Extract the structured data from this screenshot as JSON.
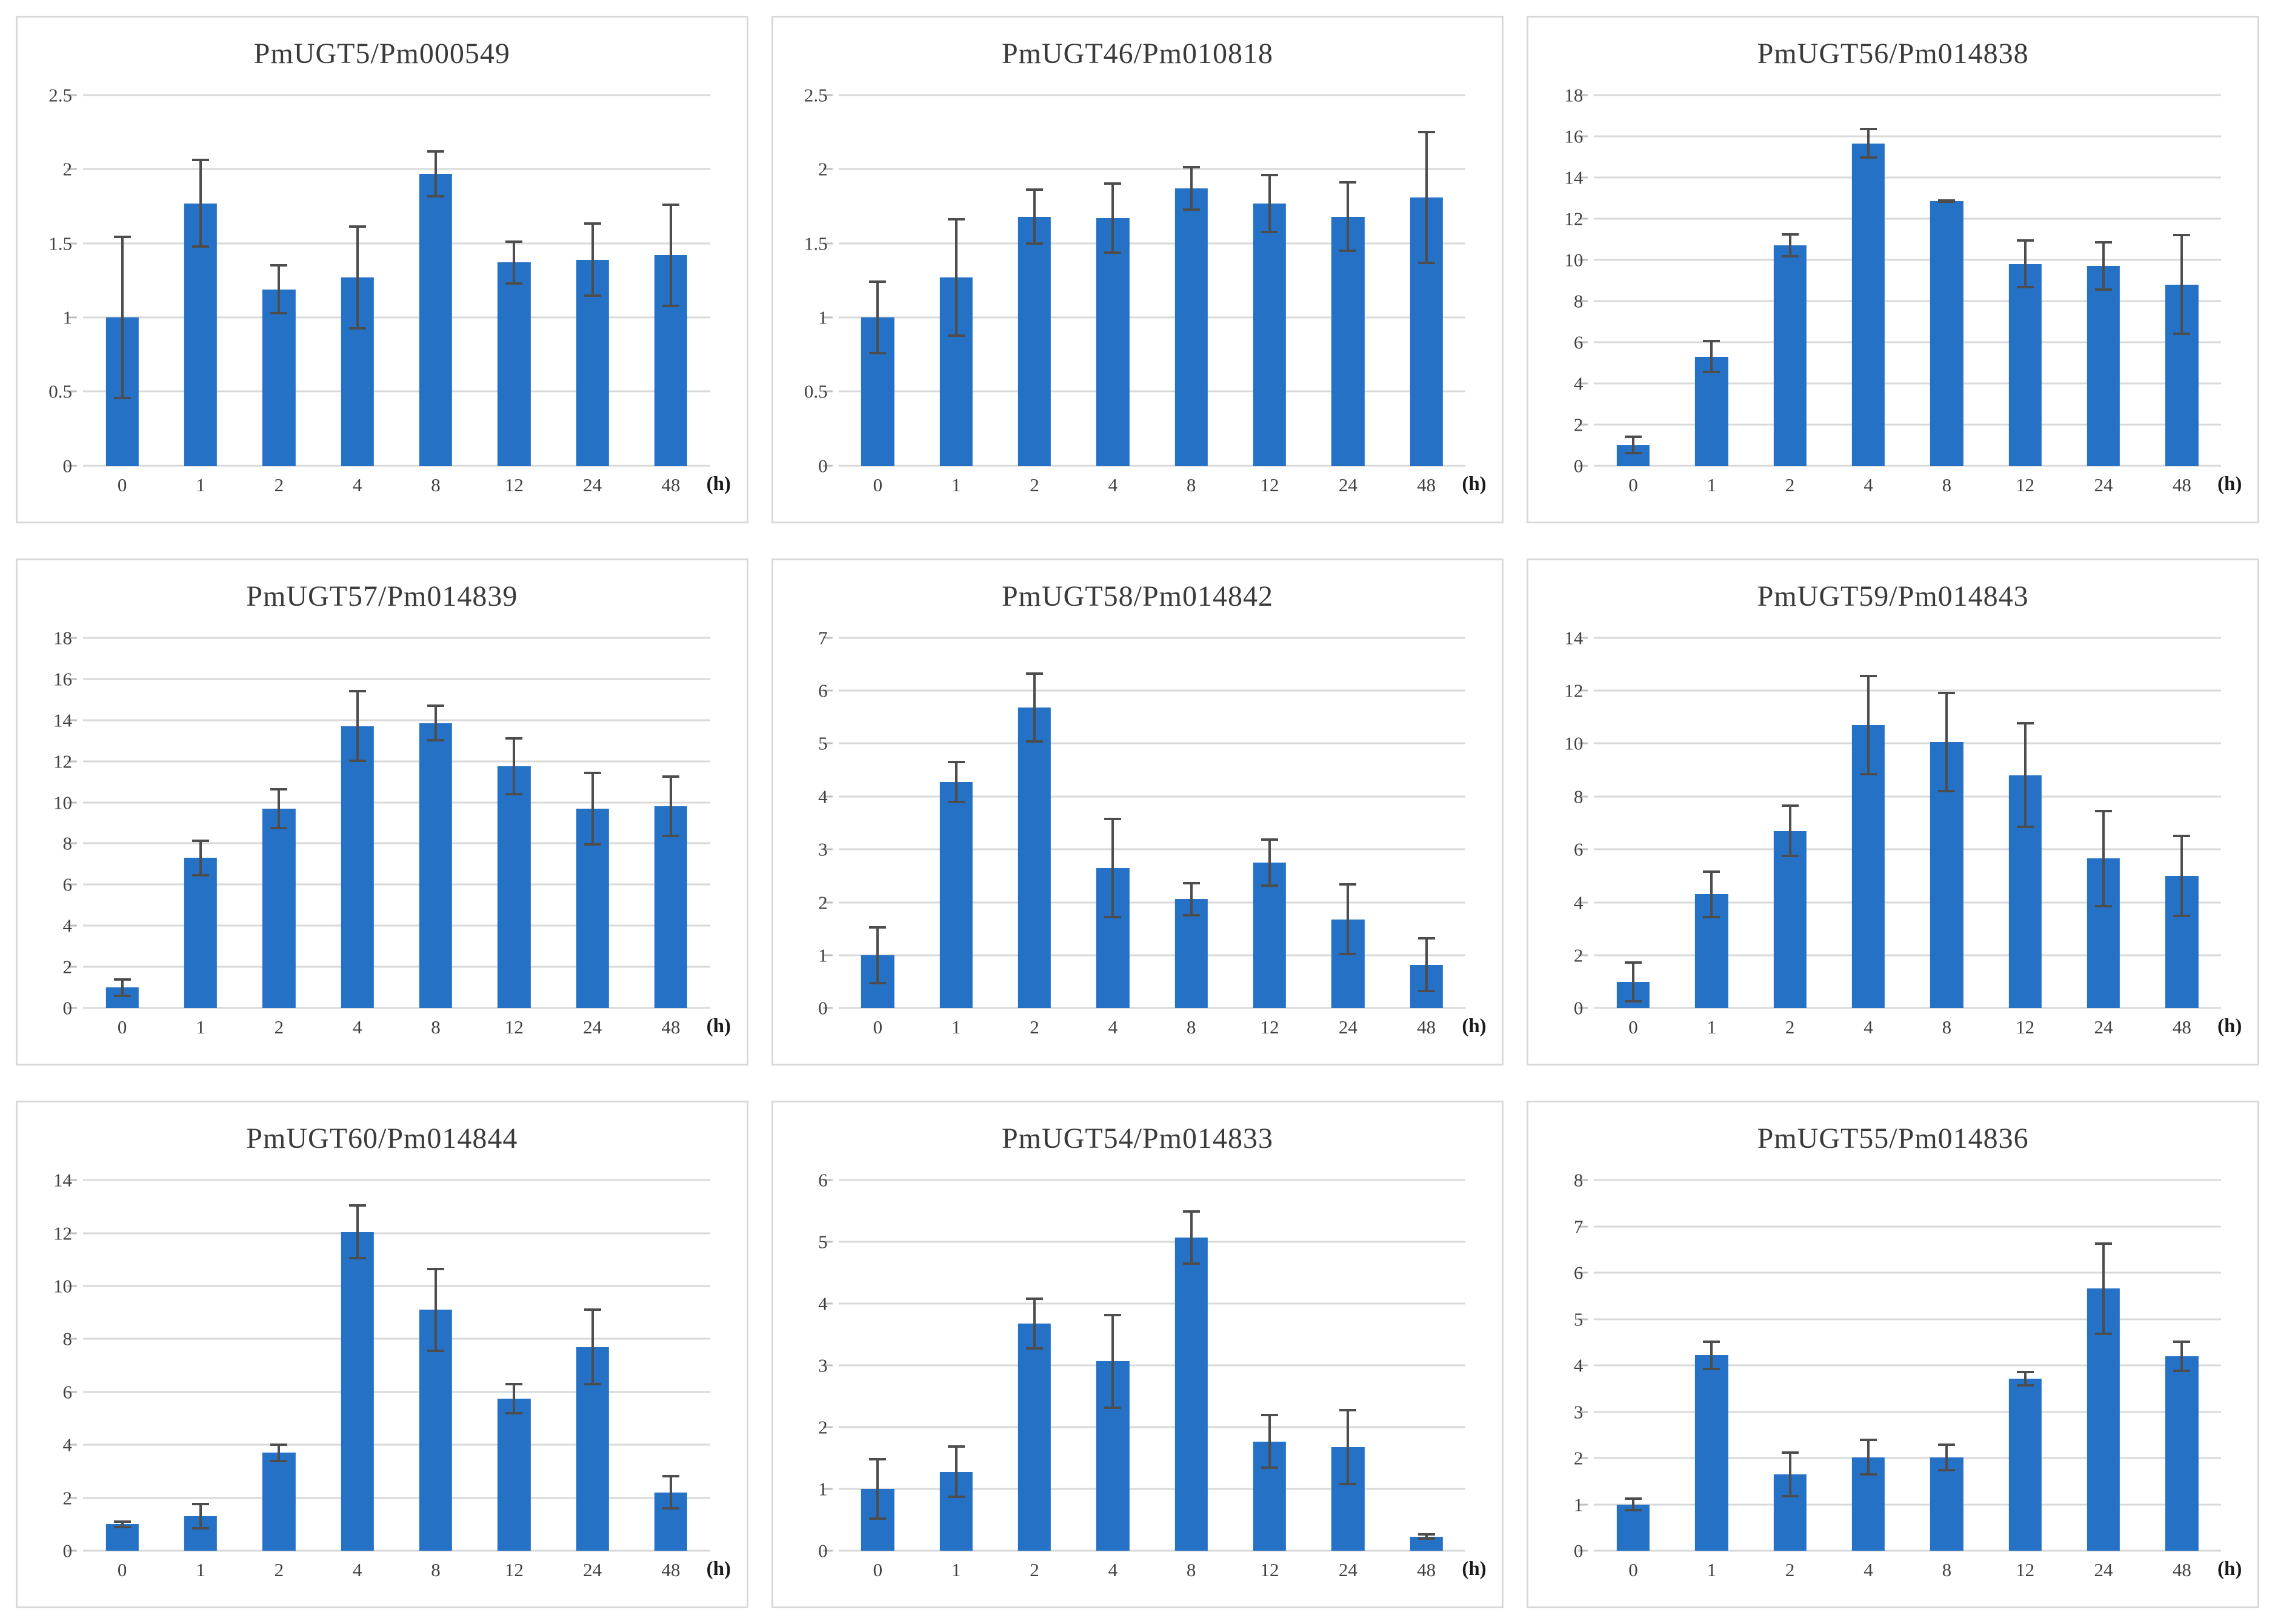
{
  "figure": {
    "categories": [
      "0",
      "1",
      "2",
      "4",
      "8",
      "12",
      "24",
      "48"
    ],
    "x_unit_label": "(h)"
  },
  "colors": {
    "bar": "#2471c6",
    "grid": "#d9d9d9",
    "tick_mark": "#bfbfbf",
    "error_bar": "#4d4d4d",
    "panel_border": "#d9d9d9",
    "text": "#404040"
  },
  "chart_data": [
    {
      "type": "bar",
      "title": "PmUGT5/Pm000549",
      "categories": [
        "0",
        "1",
        "2",
        "4",
        "8",
        "12",
        "24",
        "48"
      ],
      "values": [
        1.0,
        1.77,
        1.19,
        1.27,
        1.97,
        1.37,
        1.39,
        1.42
      ],
      "errors": [
        0.55,
        0.3,
        0.17,
        0.35,
        0.16,
        0.15,
        0.25,
        0.35
      ],
      "ylim": [
        0,
        2.5
      ],
      "yticks": [
        "0",
        "0.5",
        "1",
        "1.5",
        "2",
        "2.5"
      ],
      "xlabel": "(h)",
      "ylabel": "",
      "grid": true,
      "legend": false
    },
    {
      "type": "bar",
      "title": "PmUGT46/Pm010818",
      "categories": [
        "0",
        "1",
        "2",
        "4",
        "8",
        "12",
        "24",
        "48"
      ],
      "values": [
        1.0,
        1.27,
        1.68,
        1.67,
        1.87,
        1.77,
        1.68,
        1.81
      ],
      "errors": [
        0.25,
        0.4,
        0.19,
        0.24,
        0.15,
        0.2,
        0.24,
        0.45
      ],
      "ylim": [
        0,
        2.5
      ],
      "yticks": [
        "0",
        "0.5",
        "1",
        "1.5",
        "2",
        "2.5"
      ],
      "xlabel": "(h)",
      "ylabel": "",
      "grid": true,
      "legend": false
    },
    {
      "type": "bar",
      "title": "PmUGT56/Pm014838",
      "categories": [
        "0",
        "1",
        "2",
        "4",
        "8",
        "12",
        "24",
        "48"
      ],
      "values": [
        1.0,
        5.3,
        10.7,
        15.65,
        12.85,
        9.8,
        9.7,
        8.8
      ],
      "errors": [
        0.45,
        0.8,
        0.6,
        0.75,
        0.1,
        1.2,
        1.2,
        2.45
      ],
      "ylim": [
        0,
        18
      ],
      "yticks": [
        "0",
        "2",
        "4",
        "6",
        "8",
        "10",
        "12",
        "14",
        "16",
        "18"
      ],
      "xlabel": "(h)",
      "ylabel": "",
      "grid": true,
      "legend": false
    },
    {
      "type": "bar",
      "title": "PmUGT57/Pm014839",
      "categories": [
        "0",
        "1",
        "2",
        "4",
        "8",
        "12",
        "24",
        "48"
      ],
      "values": [
        1.0,
        7.3,
        9.7,
        13.7,
        13.85,
        11.75,
        9.7,
        9.8
      ],
      "errors": [
        0.45,
        0.9,
        1.0,
        1.75,
        0.9,
        1.4,
        1.8,
        1.5
      ],
      "ylim": [
        0,
        18
      ],
      "yticks": [
        "0",
        "2",
        "4",
        "6",
        "8",
        "10",
        "12",
        "14",
        "16",
        "18"
      ],
      "xlabel": "(h)",
      "ylabel": "",
      "grid": true,
      "legend": false
    },
    {
      "type": "bar",
      "title": "PmUGT58/Pm014842",
      "categories": [
        "0",
        "1",
        "2",
        "4",
        "8",
        "12",
        "24",
        "48"
      ],
      "values": [
        1.0,
        4.27,
        5.68,
        2.65,
        2.06,
        2.75,
        1.68,
        0.82
      ],
      "errors": [
        0.55,
        0.4,
        0.66,
        0.95,
        0.33,
        0.46,
        0.68,
        0.52
      ],
      "ylim": [
        0,
        7
      ],
      "yticks": [
        "0",
        "1",
        "2",
        "3",
        "4",
        "5",
        "6",
        "7"
      ],
      "xlabel": "(h)",
      "ylabel": "",
      "grid": true,
      "legend": false
    },
    {
      "type": "bar",
      "title": "PmUGT59/Pm014843",
      "categories": [
        "0",
        "1",
        "2",
        "4",
        "8",
        "12",
        "24",
        "48"
      ],
      "values": [
        1.0,
        4.3,
        6.7,
        10.7,
        10.05,
        8.8,
        5.65,
        5.0
      ],
      "errors": [
        0.78,
        0.9,
        1.0,
        1.9,
        1.9,
        2.0,
        1.85,
        1.55
      ],
      "ylim": [
        0,
        14
      ],
      "yticks": [
        "0",
        "2",
        "4",
        "6",
        "8",
        "10",
        "12",
        "14"
      ],
      "xlabel": "(h)",
      "ylabel": "",
      "grid": true,
      "legend": false
    },
    {
      "type": "bar",
      "title": "PmUGT60/Pm014844",
      "categories": [
        "0",
        "1",
        "2",
        "4",
        "8",
        "12",
        "24",
        "48"
      ],
      "values": [
        1.0,
        1.3,
        3.7,
        12.05,
        9.1,
        5.75,
        7.7,
        2.2
      ],
      "errors": [
        0.15,
        0.5,
        0.35,
        1.05,
        1.6,
        0.6,
        1.45,
        0.65
      ],
      "ylim": [
        0,
        14
      ],
      "yticks": [
        "0",
        "2",
        "4",
        "6",
        "8",
        "10",
        "12",
        "14"
      ],
      "xlabel": "(h)",
      "ylabel": "",
      "grid": true,
      "legend": false
    },
    {
      "type": "bar",
      "title": "PmUGT54/Pm014833",
      "categories": [
        "0",
        "1",
        "2",
        "4",
        "8",
        "12",
        "24",
        "48"
      ],
      "values": [
        1.0,
        1.28,
        3.68,
        3.07,
        5.07,
        1.77,
        1.68,
        0.23
      ],
      "errors": [
        0.5,
        0.43,
        0.42,
        0.77,
        0.44,
        0.45,
        0.62,
        0.05
      ],
      "ylim": [
        0,
        6
      ],
      "yticks": [
        "0",
        "1",
        "2",
        "3",
        "4",
        "5",
        "6"
      ],
      "xlabel": "(h)",
      "ylabel": "",
      "grid": true,
      "legend": false
    },
    {
      "type": "bar",
      "title": "PmUGT55/Pm014836",
      "categories": [
        "0",
        "1",
        "2",
        "4",
        "8",
        "12",
        "24",
        "48"
      ],
      "values": [
        1.0,
        4.22,
        1.65,
        2.02,
        2.02,
        3.72,
        5.66,
        4.2
      ],
      "errors": [
        0.15,
        0.32,
        0.5,
        0.4,
        0.3,
        0.17,
        1.0,
        0.34
      ],
      "ylim": [
        0,
        8
      ],
      "yticks": [
        "0",
        "1",
        "2",
        "3",
        "4",
        "5",
        "6",
        "7",
        "8"
      ],
      "xlabel": "(h)",
      "ylabel": "",
      "grid": true,
      "legend": false
    }
  ]
}
